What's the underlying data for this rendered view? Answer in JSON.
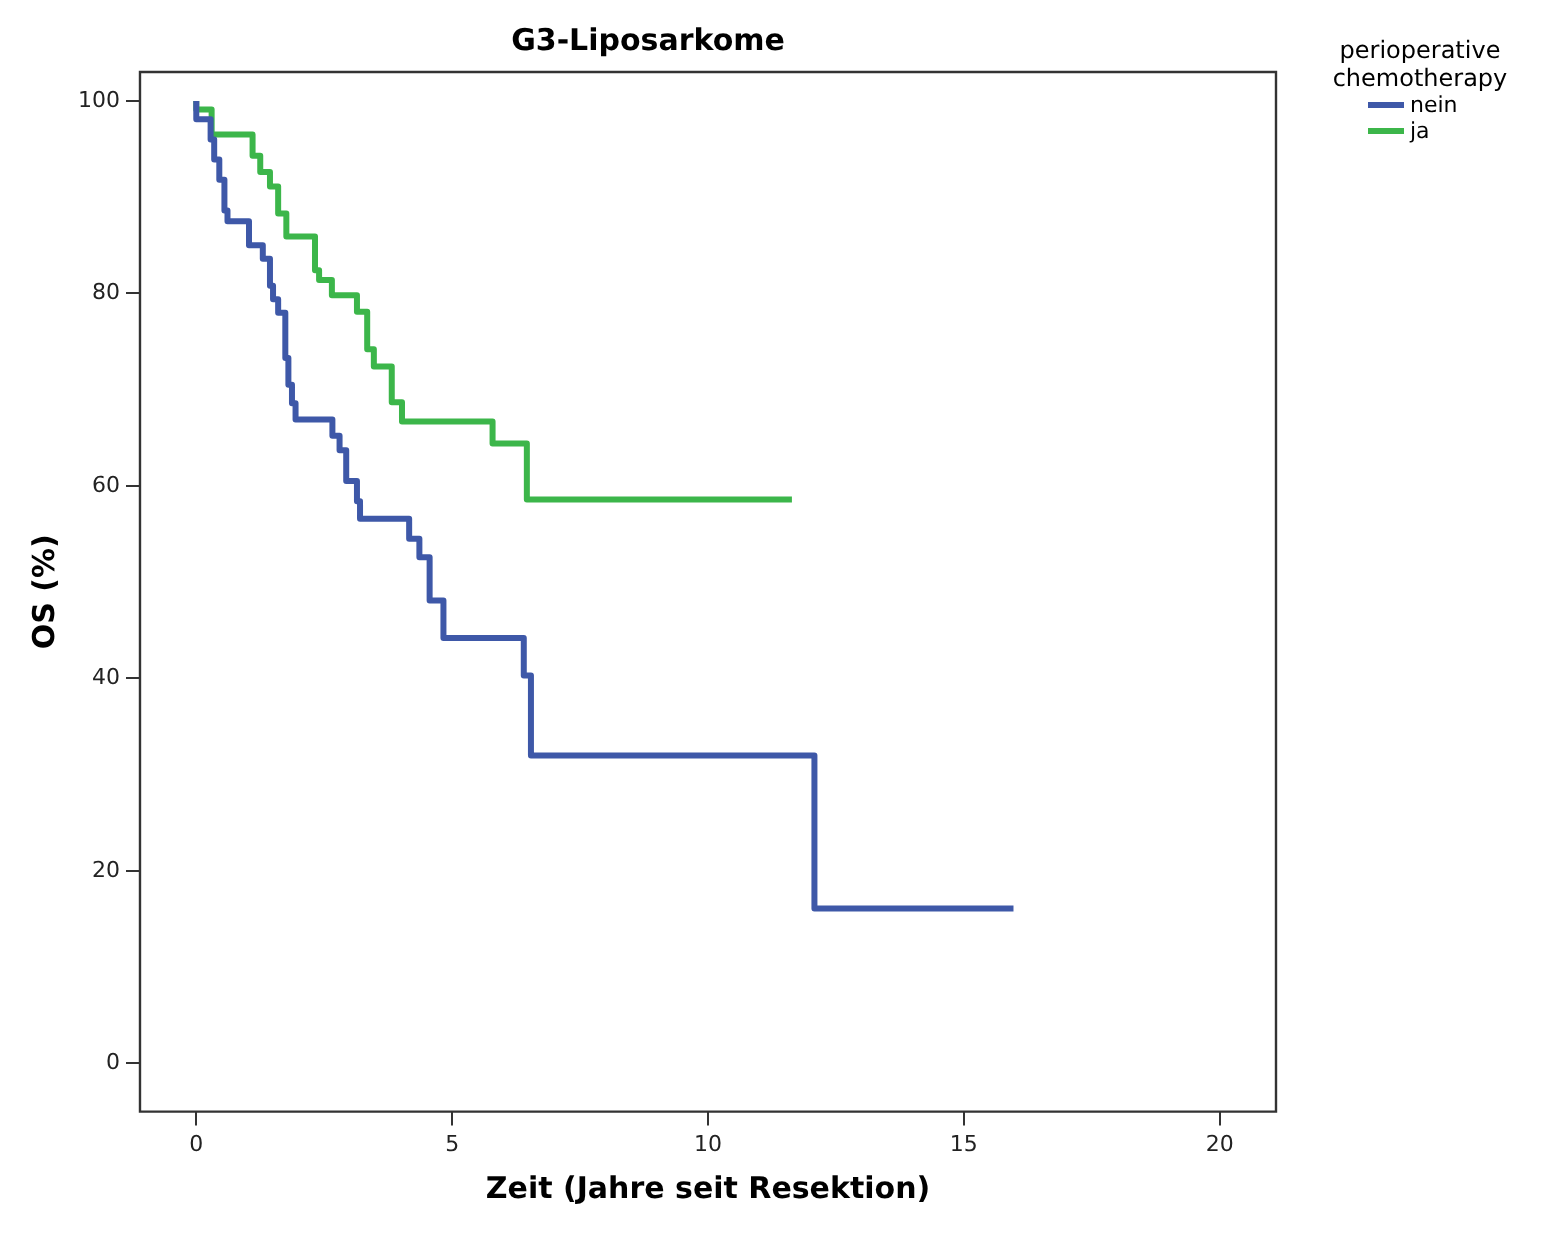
{
  "chart_data": {
    "type": "step",
    "title": "G3-Liposarkome",
    "xlabel": "Zeit (Jahre seit Resektion)",
    "ylabel": "OS (%)",
    "legend_title": "perioperative chemotherapy",
    "legend": "top right",
    "grid": false,
    "marker": "none",
    "xlim": [
      -1.1,
      21.1
    ],
    "xticks": [
      0,
      5,
      10,
      15,
      20
    ],
    "ylim": [
      -5,
      103
    ],
    "yticks": [
      0,
      20,
      40,
      60,
      80,
      100
    ],
    "series": [
      {
        "name": "nein",
        "color": "#3e58a8",
        "x": [
          0,
          0.28,
          0.35,
          0.45,
          0.55,
          0.61,
          1.03,
          1.3,
          1.44,
          1.5,
          1.6,
          1.74,
          1.8,
          1.87,
          1.94,
          2.66,
          2.8,
          2.93,
          3.14,
          3.2,
          4.16,
          4.36,
          4.56,
          4.83,
          6.4,
          6.54,
          12.08,
          13.82,
          15.97
        ],
        "values": [
          100,
          98.1,
          96,
          93.9,
          91.8,
          88.6,
          87.5,
          85,
          83.6,
          80.8,
          79.4,
          78,
          73.3,
          70.5,
          68.6,
          66.9,
          65.2,
          63.7,
          60.5,
          58.4,
          56.6,
          54.5,
          52.6,
          48.1,
          44.2,
          40.3,
          32,
          16.1,
          16.1
        ]
      },
      {
        "name": "ja",
        "color": "#3cb64a",
        "x": [
          0,
          0.3,
          1.1,
          1.25,
          1.44,
          1.6,
          1.76,
          2.32,
          2.4,
          2.65,
          3.14,
          3.34,
          3.47,
          3.82,
          4.02,
          5.79,
          6.46,
          6.81,
          11.64
        ],
        "values": [
          100,
          99.1,
          96.5,
          94.3,
          92.6,
          91.1,
          88.3,
          85.9,
          82.4,
          81.4,
          79.8,
          78.1,
          74.2,
          72.4,
          68.7,
          66.7,
          64.4,
          58.6,
          58.6
        ]
      }
    ]
  }
}
